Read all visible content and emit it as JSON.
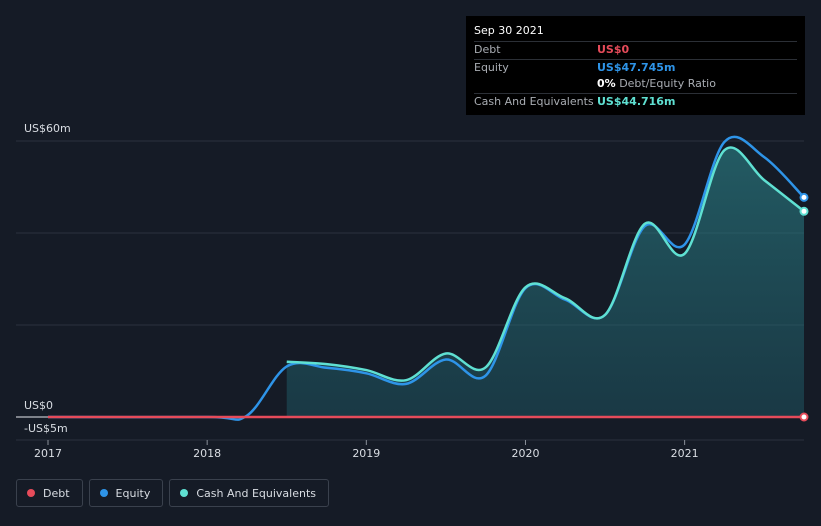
{
  "chart_data": {
    "type": "area",
    "x_start": 2017,
    "x_end": 2021.75,
    "ylim": [
      -5,
      60
    ],
    "y_tick_labels": [
      {
        "label": "US$60m",
        "value": 60
      },
      {
        "label": "US$0",
        "value": 0
      },
      {
        "label": "-US$5m",
        "value": -5
      }
    ],
    "x_tick_labels": [
      "2017",
      "2018",
      "2019",
      "2020",
      "2021"
    ],
    "x_tick_values": [
      2017,
      2018,
      2019,
      2020,
      2021
    ],
    "series": [
      {
        "name": "Debt",
        "color": "#e64b5a",
        "points": [
          [
            2017,
            0
          ],
          [
            2021.75,
            0
          ]
        ]
      },
      {
        "name": "Equity",
        "color": "#2e94e8",
        "points": [
          [
            2017,
            0
          ],
          [
            2018.0,
            0
          ],
          [
            2018.25,
            0.3
          ],
          [
            2018.5,
            11
          ],
          [
            2018.75,
            10.7
          ],
          [
            2019.0,
            9.5
          ],
          [
            2019.25,
            7.2
          ],
          [
            2019.5,
            12.5
          ],
          [
            2019.75,
            9.0
          ],
          [
            2020.0,
            28
          ],
          [
            2020.25,
            25.5
          ],
          [
            2020.5,
            22.2
          ],
          [
            2020.75,
            41.5
          ],
          [
            2021.0,
            37.5
          ],
          [
            2021.25,
            59.8
          ],
          [
            2021.5,
            56.5
          ],
          [
            2021.75,
            47.745
          ]
        ]
      },
      {
        "name": "Cash And Equivalents",
        "color": "#5fe0d2",
        "points": [
          [
            2018.5,
            12.0
          ],
          [
            2018.75,
            11.5
          ],
          [
            2019.0,
            10.2
          ],
          [
            2019.25,
            8.0
          ],
          [
            2019.5,
            13.8
          ],
          [
            2019.75,
            10.8
          ],
          [
            2020.0,
            28.2
          ],
          [
            2020.25,
            25.8
          ],
          [
            2020.5,
            22.2
          ],
          [
            2020.75,
            42.0
          ],
          [
            2021.0,
            35.5
          ],
          [
            2021.25,
            58.0
          ],
          [
            2021.5,
            51.5
          ],
          [
            2021.75,
            44.716
          ]
        ]
      }
    ],
    "area_series": "Cash And Equivalents",
    "grid": true,
    "legend_position": "bottom-left"
  },
  "tooltip": {
    "date": "Sep 30 2021",
    "rows": [
      {
        "label": "Debt",
        "value": "US$0",
        "color": "#e64b5a"
      },
      {
        "label": "Equity",
        "value": "US$47.745m",
        "color": "#2e94e8"
      },
      {
        "label": "",
        "value": "0%",
        "suffix": "Debt/Equity Ratio",
        "color": "#ffffff"
      },
      {
        "label": "Cash And Equivalents",
        "value": "US$44.716m",
        "color": "#5fe0d2"
      }
    ]
  },
  "legend": [
    {
      "label": "Debt",
      "color": "#e64b5a"
    },
    {
      "label": "Equity",
      "color": "#2e94e8"
    },
    {
      "label": "Cash And Equivalents",
      "color": "#5fe0d2"
    }
  ]
}
